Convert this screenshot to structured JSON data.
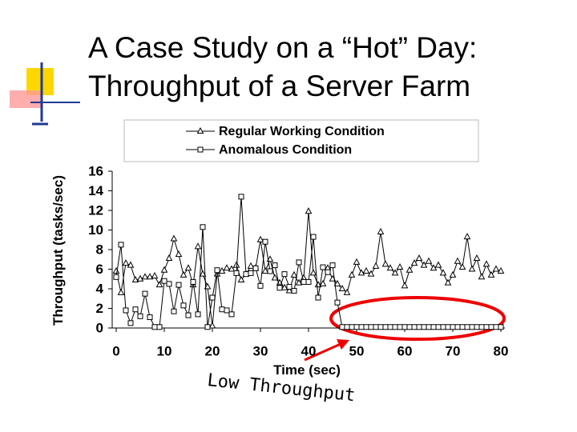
{
  "title_lines": [
    "A Case Study on a “Hot” Day:",
    "Throughput of a Server Farm"
  ],
  "annotation": "Low Throughput",
  "chart_data": {
    "type": "line",
    "x_label": "Time (sec)",
    "y_label": "Throughput (tasks/sec)",
    "x": [
      0,
      1,
      2,
      3,
      4,
      5,
      6,
      7,
      8,
      9,
      10,
      11,
      12,
      13,
      14,
      15,
      16,
      17,
      18,
      19,
      20,
      21,
      22,
      23,
      24,
      25,
      26,
      27,
      28,
      29,
      30,
      31,
      32,
      33,
      34,
      35,
      36,
      37,
      38,
      39,
      40,
      41,
      42,
      43,
      44,
      45,
      46,
      47,
      48,
      49,
      50,
      51,
      52,
      53,
      54,
      55,
      56,
      57,
      58,
      59,
      60,
      61,
      62,
      63,
      64,
      65,
      66,
      67,
      68,
      69,
      70,
      71,
      72,
      73,
      74,
      75,
      76,
      77,
      78,
      79,
      80
    ],
    "series": [
      {
        "name": "Regular Working Condition",
        "color": "#000000",
        "marker": "triangle",
        "values": [
          5.8,
          3.6,
          6.6,
          6.4,
          4.9,
          5.0,
          5.2,
          5.2,
          5.3,
          4.4,
          5.9,
          7.1,
          9.1,
          7.5,
          5.4,
          6.1,
          4.4,
          8.3,
          5.5,
          4.2,
          0.2,
          5.5,
          5.8,
          6.1,
          6.0,
          6.4,
          4.9,
          5.5,
          6.3,
          6.1,
          9.0,
          5.8,
          7.0,
          5.1,
          4.6,
          4.1,
          3.8,
          5.4,
          4.6,
          5.1,
          11.9,
          5.6,
          4.4,
          4.5,
          6.1,
          5.0,
          4.5,
          4.0,
          3.6,
          5.4,
          6.7,
          5.6,
          5.8,
          5.5,
          6.3,
          9.8,
          6.5,
          6.1,
          5.6,
          6.2,
          4.3,
          5.9,
          6.6,
          7.1,
          6.4,
          6.8,
          6.1,
          6.4,
          5.6,
          4.6,
          5.4,
          6.8,
          6.2,
          9.3,
          6.0,
          7.1,
          5.2,
          6.5,
          5.4,
          6.0,
          5.8
        ]
      },
      {
        "name": "Anomalous Condition",
        "color": "#000000",
        "marker": "square",
        "values": [
          5.2,
          8.5,
          1.8,
          0.5,
          1.9,
          1.2,
          3.5,
          1.1,
          0.1,
          0.1,
          4.8,
          4.5,
          1.7,
          4.4,
          2.3,
          1.3,
          4.7,
          1.4,
          10.3,
          0.1,
          3.1,
          5.9,
          1.9,
          1.8,
          1.4,
          5.6,
          13.4,
          5.5,
          5.6,
          6.1,
          4.3,
          8.8,
          5.8,
          6.4,
          4.1,
          5.5,
          4.2,
          3.8,
          6.7,
          4.7,
          4.7,
          9.3,
          3.1,
          6.2,
          5.7,
          6.4,
          2.6,
          0.1,
          0.1,
          0.1,
          0.1,
          0.1,
          0.1,
          0.1,
          0.1,
          0.1,
          0.1,
          0.1,
          0.1,
          0.1,
          0.1,
          0.1,
          0.1,
          0.1,
          0.1,
          0.1,
          0.1,
          0.1,
          0.1,
          0.1,
          0.1,
          0.1,
          0.1,
          0.1,
          0.1,
          0.1,
          0.1,
          0.1,
          0.1,
          0.1,
          0.1
        ]
      }
    ],
    "xlim": [
      0,
      80
    ],
    "xticks": [
      0,
      10,
      20,
      30,
      40,
      50,
      60,
      70,
      80
    ],
    "ylim": [
      0,
      16
    ],
    "yticks": [
      0,
      2,
      4,
      6,
      8,
      10,
      12,
      14,
      16
    ]
  }
}
